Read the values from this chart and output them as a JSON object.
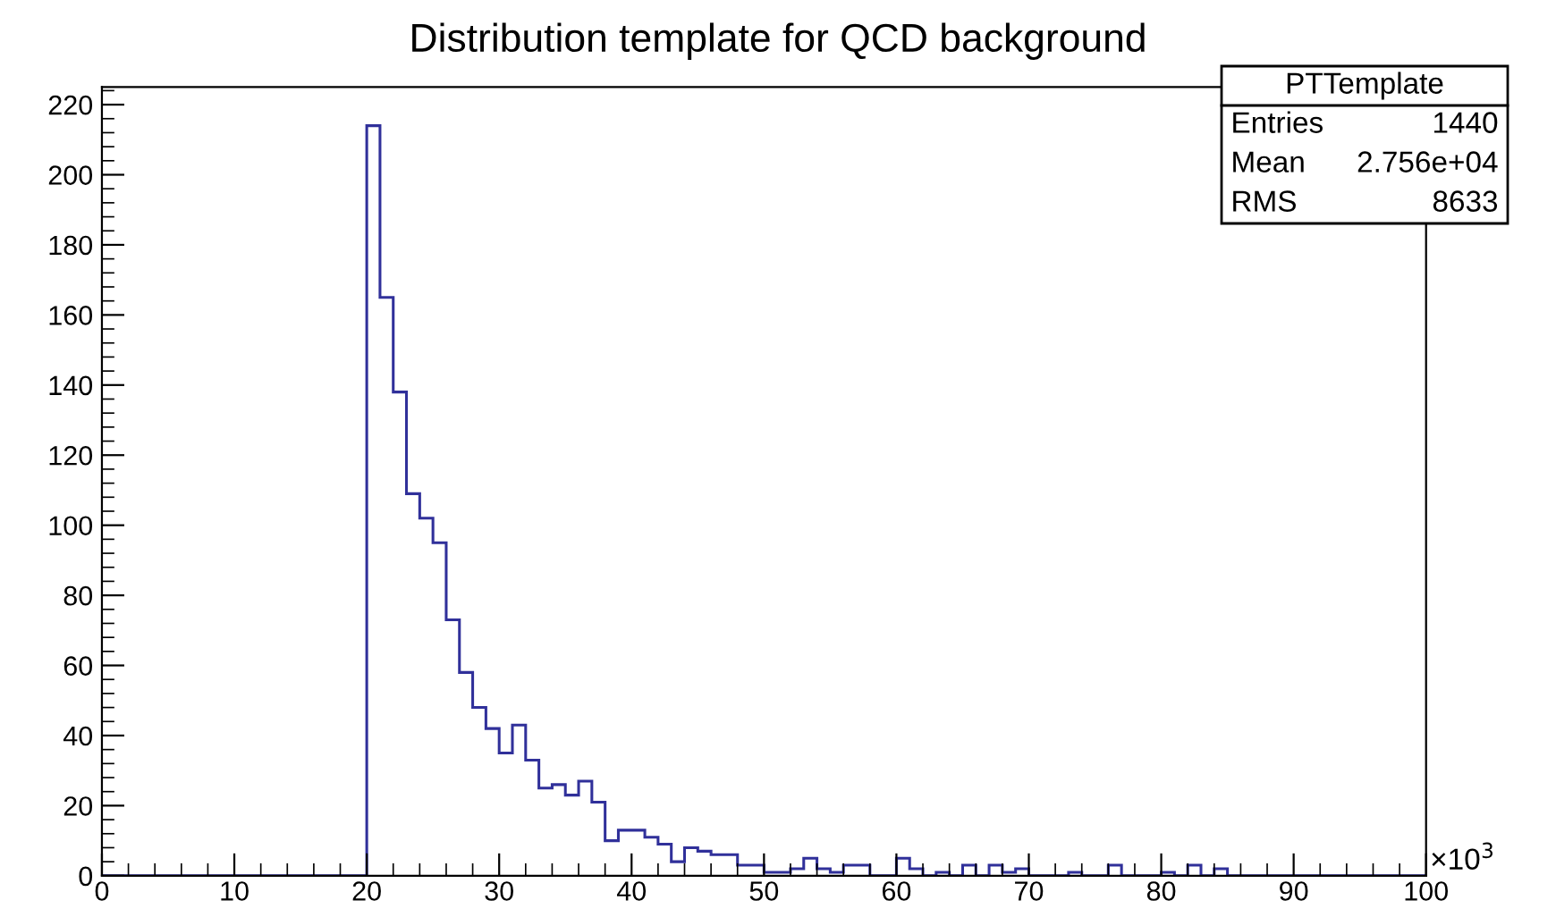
{
  "chart_data": {
    "type": "histogram",
    "title": "Distribution template for QCD background",
    "xlabel": "×10$^{3}$",
    "bins": [
      0,
      1,
      2,
      3,
      4,
      5,
      6,
      7,
      8,
      9,
      10,
      11,
      12,
      13,
      14,
      15,
      16,
      17,
      18,
      19,
      20,
      21,
      22,
      23,
      24,
      25,
      26,
      27,
      28,
      29,
      30,
      31,
      32,
      33,
      34,
      35,
      36,
      37,
      38,
      39,
      40,
      41,
      42,
      43,
      44,
      45,
      46,
      47,
      48,
      49,
      50,
      51,
      52,
      53,
      54,
      55,
      56,
      57,
      58,
      59,
      60,
      61,
      62,
      63,
      64,
      65,
      66,
      67,
      68,
      69,
      70,
      71,
      72,
      73,
      74,
      75,
      76,
      77,
      78,
      79,
      80,
      81,
      82,
      83,
      84,
      85,
      86,
      87,
      88,
      89,
      90,
      91,
      92,
      93,
      94,
      95,
      96,
      97,
      98,
      99,
      100
    ],
    "values": [
      0,
      0,
      0,
      0,
      0,
      0,
      0,
      0,
      0,
      0,
      0,
      0,
      0,
      0,
      0,
      0,
      0,
      0,
      0,
      0,
      214,
      165,
      138,
      109,
      102,
      95,
      73,
      58,
      48,
      42,
      35,
      43,
      33,
      25,
      26,
      23,
      27,
      21,
      10,
      13,
      13,
      11,
      9,
      4,
      8,
      7,
      6,
      6,
      3,
      3,
      1,
      1,
      2,
      5,
      2,
      1,
      3,
      3,
      0,
      0,
      5,
      2,
      0,
      1,
      0,
      3,
      0,
      3,
      1,
      2,
      0,
      0,
      0,
      1,
      0,
      0,
      3,
      0,
      0,
      0,
      1,
      0,
      3,
      0,
      2,
      0,
      0,
      0,
      0,
      0,
      0,
      0,
      0,
      0,
      0,
      0,
      0,
      0,
      0,
      0
    ],
    "color": "#30309a",
    "xlim": [
      0,
      100
    ],
    "xticks": [
      0,
      10,
      20,
      30,
      40,
      50,
      60,
      70,
      80,
      90,
      100
    ],
    "ylim": [
      0,
      225
    ],
    "yticks": [
      0,
      20,
      40,
      60,
      80,
      100,
      120,
      140,
      160,
      180,
      200,
      220
    ],
    "grid": false,
    "legend": false,
    "annotations": [
      "PTTemplate",
      "Entries",
      "1440",
      "Mean",
      "2.756e+04",
      "RMS",
      "8633"
    ]
  }
}
